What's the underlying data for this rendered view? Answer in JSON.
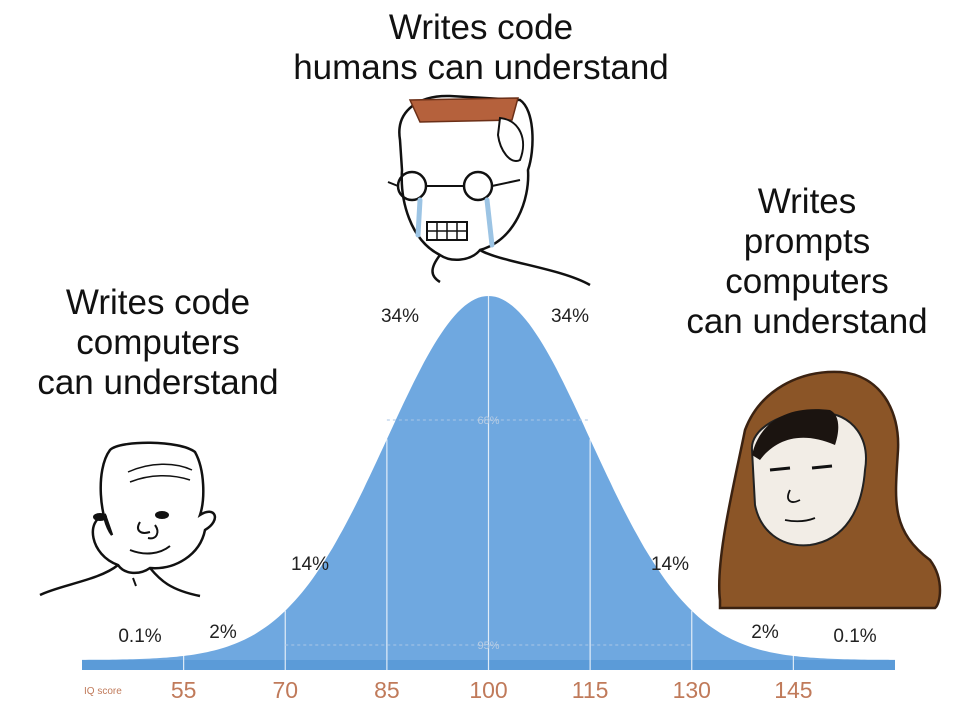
{
  "captions": {
    "top": [
      "Writes code",
      "humans can understand"
    ],
    "left": [
      "Writes code",
      "computers",
      "can understand"
    ],
    "right": [
      "Writes",
      "prompts",
      "computers",
      "can understand"
    ]
  },
  "colors": {
    "curve_fill": "#6fa8e0",
    "axis_bar": "#5b9bd8",
    "tick_text": "#c07a5a",
    "hood": "#8b5527"
  },
  "characters": [
    {
      "name": "simple-wojak",
      "position": "left"
    },
    {
      "name": "nerd-wojak-crying-glasses",
      "position": "top"
    },
    {
      "name": "hooded-wojak",
      "position": "right"
    }
  ],
  "chart_data": {
    "type": "area",
    "distribution": "normal",
    "mean": 100,
    "sd": 15,
    "x_axis_title": "IQ score",
    "ticks": [
      55,
      70,
      85,
      100,
      115,
      130,
      145
    ],
    "xlim": [
      40,
      160
    ],
    "band_labels": [
      {
        "range": [
          40,
          55
        ],
        "label": "0.1%"
      },
      {
        "range": [
          55,
          70
        ],
        "label": "2%"
      },
      {
        "range": [
          70,
          85
        ],
        "label": "14%"
      },
      {
        "range": [
          85,
          100
        ],
        "label": "34%"
      },
      {
        "range": [
          100,
          115
        ],
        "label": "34%"
      },
      {
        "range": [
          115,
          130
        ],
        "label": "14%"
      },
      {
        "range": [
          130,
          145
        ],
        "label": "2%"
      },
      {
        "range": [
          145,
          160
        ],
        "label": "0.1%"
      }
    ],
    "interval_labels": [
      {
        "range": [
          85,
          115
        ],
        "label": "68%"
      },
      {
        "range": [
          70,
          130
        ],
        "label": "95%"
      }
    ]
  }
}
